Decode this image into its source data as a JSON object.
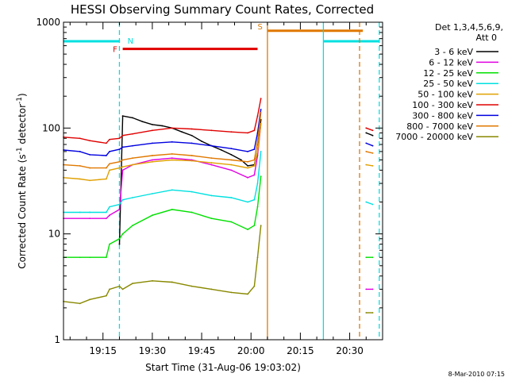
{
  "chart_data": {
    "type": "line",
    "title": "HESSI Observing Summary Count Rates, Corrected",
    "xlabel": "Start Time (31-Aug-06 19:03:02)",
    "ylabel_main": "Corrected Count Rate (s",
    "ylabel_sup1": "-1",
    "ylabel_mid": " detector",
    "ylabel_sup2": "-1",
    "ylabel_end": ")",
    "xlim": [
      "19:03",
      "20:40"
    ],
    "ylim": [
      1,
      1000
    ],
    "yscale": "log",
    "x_ticks": [
      "19:15",
      "19:30",
      "19:45",
      "20:00",
      "20:15",
      "20:30"
    ],
    "y_ticks": [
      {
        "value": 1,
        "label": "1"
      },
      {
        "value": 10,
        "label": "10"
      },
      {
        "value": 100,
        "label": "100"
      },
      {
        "value": 1000,
        "label": "1000"
      }
    ],
    "legend_title_1": "Det 1,3,4,5,6,9,",
    "legend_title_2": "Att 0",
    "legend_placement": "right",
    "footer": "8-Mar-2010 07:15",
    "series": [
      {
        "name": "3 - 6 keV",
        "color": "#000000",
        "x": [
          "19:20",
          "19:21",
          "19:24",
          "19:27",
          "19:30",
          "19:33",
          "19:36",
          "19:39",
          "19:42",
          "19:45",
          "19:48",
          "19:51",
          "19:54",
          "19:57",
          "19:59",
          "20:01",
          "20:02",
          "20:03"
        ],
        "y": [
          8,
          130,
          125,
          115,
          108,
          105,
          100,
          92,
          85,
          75,
          68,
          62,
          56,
          50,
          44,
          45,
          60,
          120
        ]
      },
      {
        "name": "6 - 12 keV",
        "color": "#e000e0",
        "x": [
          "19:03",
          "19:11",
          "19:16",
          "19:17",
          "19:20",
          "19:21",
          "19:24",
          "19:30",
          "19:36",
          "19:42",
          "19:48",
          "19:54",
          "19:59",
          "20:01",
          "20:02",
          "20:03"
        ],
        "y": [
          14,
          14,
          14,
          15,
          17,
          40,
          45,
          50,
          52,
          50,
          45,
          40,
          34,
          36,
          55,
          110
        ]
      },
      {
        "name": "12 - 25 keV",
        "color": "#00e000",
        "x": [
          "19:03",
          "19:08",
          "19:11",
          "19:16",
          "19:17",
          "19:20",
          "19:21",
          "19:24",
          "19:30",
          "19:36",
          "19:42",
          "19:48",
          "19:54",
          "19:59",
          "20:01",
          "20:02",
          "20:03"
        ],
        "y": [
          6,
          6,
          6,
          6,
          8,
          9,
          10,
          12,
          15,
          17,
          16,
          14,
          13,
          11,
          12,
          18,
          35
        ]
      },
      {
        "name": "25 - 50 keV",
        "color": "#00e0e0",
        "x": [
          "19:03",
          "19:08",
          "19:11",
          "19:16",
          "19:17",
          "19:20",
          "19:21",
          "19:24",
          "19:30",
          "19:36",
          "19:42",
          "19:48",
          "19:54",
          "19:59",
          "20:01",
          "20:02",
          "20:03"
        ],
        "y": [
          16,
          16,
          16,
          16,
          18,
          19,
          21,
          22,
          24,
          26,
          25,
          23,
          22,
          20,
          21,
          30,
          60
        ]
      },
      {
        "name": "50 - 100 keV",
        "color": "#e0a000",
        "x": [
          "19:03",
          "19:08",
          "19:11",
          "19:16",
          "19:17",
          "19:20",
          "19:21",
          "19:24",
          "19:30",
          "19:36",
          "19:42",
          "19:48",
          "19:54",
          "19:59",
          "20:01",
          "20:02",
          "20:03"
        ],
        "y": [
          34,
          33,
          32,
          33,
          40,
          42,
          43,
          45,
          48,
          50,
          49,
          47,
          45,
          42,
          44,
          60,
          110
        ]
      },
      {
        "name": "100 - 300 keV",
        "color": "#e00000",
        "x": [
          "19:03",
          "19:08",
          "19:11",
          "19:16",
          "19:17",
          "19:20",
          "19:21",
          "19:24",
          "19:30",
          "19:36",
          "19:42",
          "19:48",
          "19:54",
          "19:59",
          "20:01",
          "20:02",
          "20:03"
        ],
        "y": [
          82,
          80,
          76,
          72,
          78,
          80,
          85,
          88,
          95,
          100,
          98,
          95,
          92,
          90,
          95,
          130,
          190
        ]
      },
      {
        "name": "300 - 800 keV",
        "color": "#0000e0",
        "x": [
          "19:03",
          "19:08",
          "19:11",
          "19:16",
          "19:17",
          "19:20",
          "19:21",
          "19:24",
          "19:30",
          "19:36",
          "19:42",
          "19:48",
          "19:54",
          "19:59",
          "20:01",
          "20:02",
          "20:03"
        ],
        "y": [
          62,
          60,
          56,
          55,
          60,
          63,
          66,
          68,
          72,
          74,
          72,
          68,
          64,
          60,
          63,
          90,
          150
        ]
      },
      {
        "name": "800 - 7000 keV",
        "color": "#e07800",
        "x": [
          "19:03",
          "19:08",
          "19:11",
          "19:16",
          "19:17",
          "19:20",
          "19:21",
          "19:24",
          "19:30",
          "19:36",
          "19:42",
          "19:48",
          "19:54",
          "19:59",
          "20:01",
          "20:02",
          "20:03"
        ],
        "y": [
          45,
          44,
          42,
          42,
          46,
          48,
          50,
          52,
          55,
          57,
          55,
          52,
          50,
          48,
          50,
          75,
          140
        ]
      },
      {
        "name": "7000 - 20000 keV",
        "color": "#888800",
        "x": [
          "19:03",
          "19:08",
          "19:11",
          "19:16",
          "19:17",
          "19:20",
          "19:21",
          "19:24",
          "19:30",
          "19:36",
          "19:42",
          "19:48",
          "19:54",
          "19:59",
          "20:01",
          "20:02",
          "20:03"
        ],
        "y": [
          2.3,
          2.2,
          2.4,
          2.6,
          3,
          3.2,
          3,
          3.4,
          3.6,
          3.5,
          3.2,
          3.0,
          2.8,
          2.7,
          3.2,
          6,
          12
        ]
      }
    ],
    "post_gap_series": [
      {
        "color": "#e00000",
        "x": [
          "20:35",
          "20:37"
        ],
        "y": [
          100,
          95
        ]
      },
      {
        "color": "#0000e0",
        "x": [
          "20:35",
          "20:37"
        ],
        "y": [
          72,
          68
        ]
      },
      {
        "color": "#e07800",
        "x": [
          "20:35",
          "20:37"
        ],
        "y": [
          60,
          58
        ]
      },
      {
        "color": "#000000",
        "x": [
          "20:35",
          "20:37"
        ],
        "y": [
          90,
          85
        ]
      },
      {
        "color": "#e0a000",
        "x": [
          "20:35",
          "20:37"
        ],
        "y": [
          45,
          44
        ]
      },
      {
        "color": "#00e0e0",
        "x": [
          "20:35",
          "20:37"
        ],
        "y": [
          20,
          19
        ]
      },
      {
        "color": "#00e000",
        "x": [
          "20:35",
          "20:37"
        ],
        "y": [
          6,
          6
        ]
      },
      {
        "color": "#e000e0",
        "x": [
          "20:35",
          "20:37"
        ],
        "y": [
          3,
          3
        ]
      },
      {
        "color": "#888800",
        "x": [
          "20:35",
          "20:37"
        ],
        "y": [
          1.8,
          1.8
        ]
      }
    ],
    "flags": [
      {
        "label": "N",
        "color": "#00e0e0",
        "y": 660,
        "x_start": "19:03",
        "x_end": "19:20",
        "label_x": "19:21"
      },
      {
        "label": "N",
        "color": "#00e0e0",
        "y": 660,
        "x_start": "20:22",
        "x_end": "20:39",
        "label_x": null
      },
      {
        "label": "F",
        "color": "#e00000",
        "y": 560,
        "x_start": "19:21",
        "x_end": "20:02",
        "label_x": "19:18"
      },
      {
        "label": "S",
        "color": "#e07800",
        "y": 830,
        "x_start": "20:05",
        "x_end": "20:34",
        "label_x": "20:02"
      }
    ],
    "vlines": [
      {
        "x": "19:20",
        "color": "#00e0e0",
        "dashed": true
      },
      {
        "x": "20:05",
        "color": "#e07800",
        "dashed": false
      },
      {
        "x": "20:22",
        "color": "#00e0e0",
        "dashed": false
      },
      {
        "x": "20:33",
        "color": "#e07800",
        "dashed": true
      },
      {
        "x": "20:39",
        "color": "#00e0e0",
        "dashed": true
      }
    ]
  }
}
